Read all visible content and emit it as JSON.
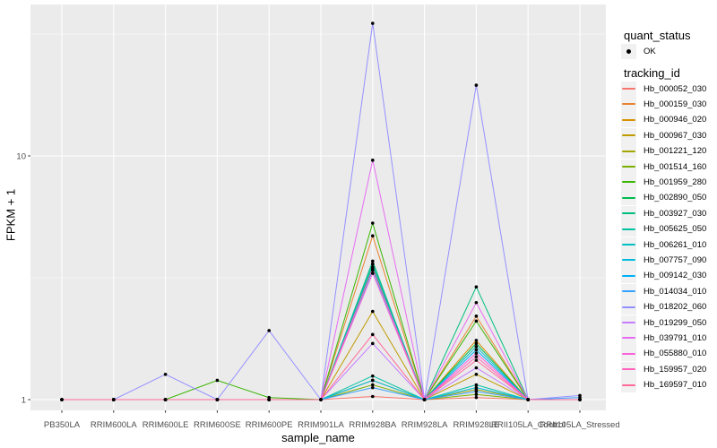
{
  "figure": {
    "background": "#FFFFFF",
    "panel_background": "#EBEBEB",
    "gridline_color": "#FFFFFF",
    "tick_label_color": "#4D4D4D",
    "text_color": "#000000"
  },
  "legend": {
    "quant_status_title": "quant_status",
    "ok_label": "OK",
    "tracking_id_title": "tracking_id"
  },
  "chart_data": {
    "type": "line",
    "title": "",
    "xlabel": "sample_name",
    "ylabel": "FPKM + 1",
    "x_type": "categorical",
    "y_scale": "log10",
    "grid": true,
    "legend_position": "right",
    "point_shape": "filled-circle",
    "point_color": "#000000",
    "quant_status_values": [
      "OK"
    ],
    "ylim_approx": [
      0.9,
      42
    ],
    "y_ticks": [
      {
        "value": 1,
        "label": "1"
      },
      {
        "value": 10,
        "label": "10"
      }
    ],
    "y_minor_ticks": [
      3.162,
      31.62
    ],
    "categories": [
      "PB350LA",
      "RRIM600LA",
      "RRIM600LE",
      "RRIM600SE",
      "RRIM600PE",
      "RRIM901LA",
      "RRIM928BA",
      "RRIM928LA",
      "RRIM928LE",
      "RRII105LA_Control",
      "RRII105LA_Stressed"
    ],
    "series": [
      {
        "name": "Hb_000052_030",
        "color": "#F8766D",
        "values": [
          1,
          1,
          1,
          1,
          1,
          1,
          1.03,
          1,
          1.02,
          1,
          1
        ]
      },
      {
        "name": "Hb_000159_030",
        "color": "#EA8331",
        "values": [
          1,
          1,
          1,
          1,
          1,
          1,
          4.7,
          1,
          2.2,
          1,
          1
        ]
      },
      {
        "name": "Hb_000946_020",
        "color": "#D89000",
        "values": [
          1,
          1,
          1,
          1,
          1,
          1,
          3.6,
          1,
          1.75,
          1,
          1
        ]
      },
      {
        "name": "Hb_000967_030",
        "color": "#C09B00",
        "values": [
          1,
          1,
          1,
          1,
          1,
          1,
          2.3,
          1,
          1.27,
          1,
          1
        ]
      },
      {
        "name": "Hb_001221_120",
        "color": "#A3A500",
        "values": [
          1,
          1,
          1,
          1,
          1,
          1,
          1.2,
          1,
          1.1,
          1,
          1
        ]
      },
      {
        "name": "Hb_001514_160",
        "color": "#7CAE00",
        "values": [
          1,
          1,
          1,
          1,
          1,
          1,
          1.15,
          1,
          1.05,
          1,
          1
        ]
      },
      {
        "name": "Hb_001959_280",
        "color": "#39B600",
        "values": [
          1,
          1,
          1,
          1.2,
          1.02,
          1,
          5.3,
          1,
          2.1,
          1,
          1
        ]
      },
      {
        "name": "Hb_002890_050",
        "color": "#00BB4E",
        "values": [
          1,
          1,
          1,
          1,
          1,
          1,
          3.5,
          1,
          1.7,
          1,
          1
        ]
      },
      {
        "name": "Hb_003927_030",
        "color": "#00BF7D",
        "values": [
          1,
          1,
          1,
          1,
          1,
          1,
          3.7,
          1,
          2.9,
          1,
          1
        ]
      },
      {
        "name": "Hb_005625_050",
        "color": "#00C1A3",
        "values": [
          1,
          1,
          1,
          1,
          1,
          1,
          1.25,
          1,
          1.15,
          1,
          1
        ]
      },
      {
        "name": "Hb_006261_010",
        "color": "#00BFC4",
        "values": [
          1,
          1,
          1,
          1,
          1,
          1,
          3.6,
          1,
          1.65,
          1,
          1
        ]
      },
      {
        "name": "Hb_007757_090",
        "color": "#00BAE0",
        "values": [
          1,
          1,
          1,
          1,
          1,
          1,
          1.2,
          1,
          1.12,
          1,
          1
        ]
      },
      {
        "name": "Hb_009142_030",
        "color": "#00B0F6",
        "values": [
          1,
          1,
          1,
          1,
          1,
          1,
          3.4,
          1,
          1.6,
          1,
          1
        ]
      },
      {
        "name": "Hb_014034_010",
        "color": "#35A2FF",
        "values": [
          1,
          1,
          1,
          1,
          1,
          1,
          1.12,
          1,
          1.08,
          1,
          1.02
        ]
      },
      {
        "name": "Hb_018202_060",
        "color": "#9590FF",
        "values": [
          1,
          1,
          1.27,
          1,
          1.92,
          1,
          35,
          1,
          19.5,
          1,
          1.04
        ]
      },
      {
        "name": "Hb_019299_050",
        "color": "#C77CFF",
        "values": [
          1,
          1,
          1,
          1,
          1,
          1,
          1.7,
          1,
          1.35,
          1,
          1
        ]
      },
      {
        "name": "Hb_039791_010",
        "color": "#E76BF3",
        "values": [
          1,
          1,
          1,
          1,
          1,
          1,
          9.6,
          1,
          2.5,
          1,
          1
        ]
      },
      {
        "name": "Hb_055880_010",
        "color": "#FA62DB",
        "values": [
          1,
          1,
          1,
          1,
          1,
          1,
          3.3,
          1,
          1.55,
          1,
          1
        ]
      },
      {
        "name": "Hb_159957_020",
        "color": "#FF62BC",
        "values": [
          1,
          1,
          1,
          1,
          1,
          1,
          3.45,
          1,
          1.5,
          1,
          1
        ]
      },
      {
        "name": "Hb_169597_010",
        "color": "#FF6A98",
        "values": [
          1,
          1,
          1,
          1,
          1,
          1,
          1.85,
          1,
          1.45,
          1,
          1
        ]
      }
    ]
  }
}
